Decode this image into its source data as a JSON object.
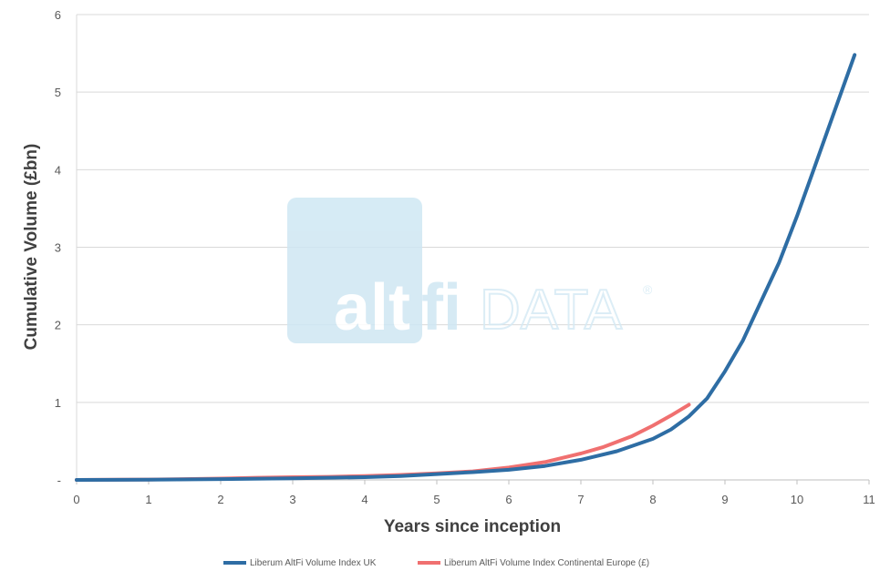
{
  "chart_data": {
    "type": "line",
    "xlabel": "Years since inception",
    "ylabel": "Cumulative Volume (£bn)",
    "xlim": [
      0,
      11
    ],
    "ylim": [
      0,
      6
    ],
    "x_ticks": [
      0,
      1,
      2,
      3,
      4,
      5,
      6,
      7,
      8,
      9,
      10,
      11
    ],
    "y_ticks": [
      {
        "value": 0,
        "label": "-"
      },
      {
        "value": 1,
        "label": "1"
      },
      {
        "value": 2,
        "label": "2"
      },
      {
        "value": 3,
        "label": "3"
      },
      {
        "value": 4,
        "label": "4"
      },
      {
        "value": 5,
        "label": "5"
      },
      {
        "value": 6,
        "label": "6"
      }
    ],
    "grid": "horizontal",
    "legend_position": "bottom",
    "series": [
      {
        "name": "Liberum AltFi Volume Index UK",
        "color": "#2e6da4",
        "x": [
          0,
          1,
          2,
          3,
          4,
          4.5,
          5,
          5.5,
          6,
          6.5,
          7,
          7.5,
          8,
          8.25,
          8.5,
          8.75,
          9,
          9.25,
          9.5,
          9.75,
          10,
          10.25,
          10.5,
          10.8
        ],
        "y": [
          0,
          0.003,
          0.01,
          0.02,
          0.035,
          0.05,
          0.075,
          0.1,
          0.13,
          0.18,
          0.26,
          0.37,
          0.53,
          0.65,
          0.82,
          1.05,
          1.4,
          1.8,
          2.3,
          2.8,
          3.4,
          4.05,
          4.7,
          5.48
        ]
      },
      {
        "name": "Liberum AltFi Volume Index Continental Europe (£)",
        "color": "#f07070",
        "x": [
          0,
          1,
          1.5,
          2,
          2.5,
          3,
          3.5,
          4,
          4.5,
          5,
          5.5,
          6,
          6.5,
          7,
          7.3,
          7.7,
          8,
          8.25,
          8.5
        ],
        "y": [
          0,
          0.005,
          0.01,
          0.018,
          0.028,
          0.035,
          0.04,
          0.05,
          0.065,
          0.085,
          0.11,
          0.16,
          0.23,
          0.34,
          0.42,
          0.56,
          0.7,
          0.83,
          0.97
        ]
      }
    ]
  },
  "watermark": {
    "brand_left": "alt",
    "brand_right": "fi",
    "brand_suffix": "DATA",
    "registered": "®"
  }
}
